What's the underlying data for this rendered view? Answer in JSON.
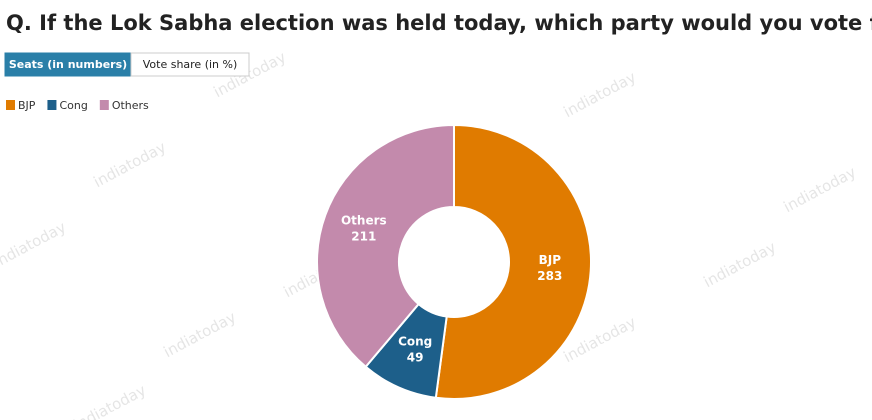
{
  "tabs": [
    {
      "label": "Seats (in numbers)",
      "active": true
    },
    {
      "label": "Vote share (in %)",
      "active": false
    }
  ],
  "watermark": "indiatoday",
  "chart_data": {
    "type": "donut",
    "title": "Q. If the Lok Sabha election was held today, which party would you vote for?",
    "categories": [
      "BJP",
      "Cong",
      "Others"
    ],
    "values": [
      283,
      49,
      211
    ],
    "colors": [
      "#e07b00",
      "#1d5f8a",
      "#c38aac"
    ],
    "legend": "top-left"
  }
}
